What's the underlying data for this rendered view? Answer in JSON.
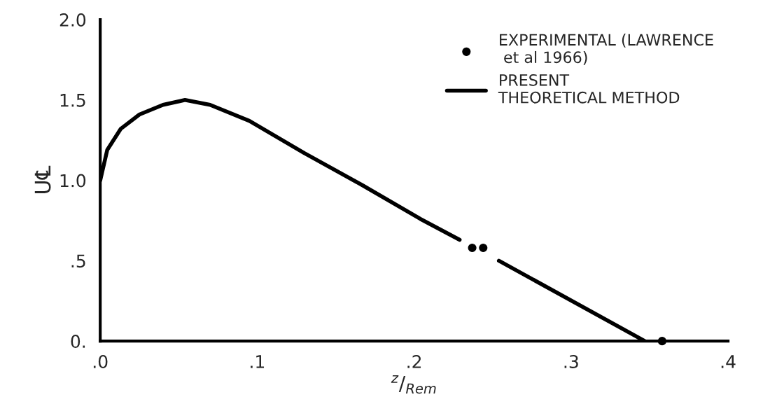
{
  "chart_data": {
    "type": "line",
    "xlabel": "$^{z}$/$_{Rem}$",
    "ylabel": "U℄",
    "xlim": [
      0,
      0.4
    ],
    "ylim": [
      0,
      2.0
    ],
    "xticks": [
      {
        "value": 0,
        "label": ".0"
      },
      {
        "value": 0.1,
        "label": ".1"
      },
      {
        "value": 0.2,
        "label": ".2"
      },
      {
        "value": 0.3,
        "label": ".3"
      },
      {
        "value": 0.4,
        "label": ".4"
      }
    ],
    "yticks": [
      {
        "value": 0,
        "label": "0."
      },
      {
        "value": 0.5,
        "label": ".5"
      },
      {
        "value": 1.0,
        "label": "1.0"
      },
      {
        "value": 1.5,
        "label": "1.5"
      },
      {
        "value": 2.0,
        "label": "2.0"
      }
    ],
    "series": [
      {
        "name": "EXPERIMENTAL (LAWRENCE\n et al 1966)",
        "type": "scatter",
        "color": "#000000",
        "marker": "circle",
        "x": [
          0.237,
          0.244,
          0.358
        ],
        "values": [
          0.58,
          0.58,
          0.0
        ]
      },
      {
        "name": "PRESENT\nTHEORETICAL METHOD",
        "color": "#000000",
        "marker": "none",
        "line_style": "solid",
        "x": [
          0,
          0.0045,
          0.013,
          0.025,
          0.04,
          0.054,
          0.07,
          0.095,
          0.13,
          0.167,
          0.204,
          0.229,
          0.24,
          0.254,
          0.347
        ],
        "values": [
          1.0,
          1.19,
          1.32,
          1.41,
          1.47,
          1.5,
          1.47,
          1.37,
          1.17,
          0.97,
          0.76,
          0.63,
          null,
          0.5,
          0.0
        ]
      }
    ],
    "grid": false,
    "legend": "top right"
  }
}
